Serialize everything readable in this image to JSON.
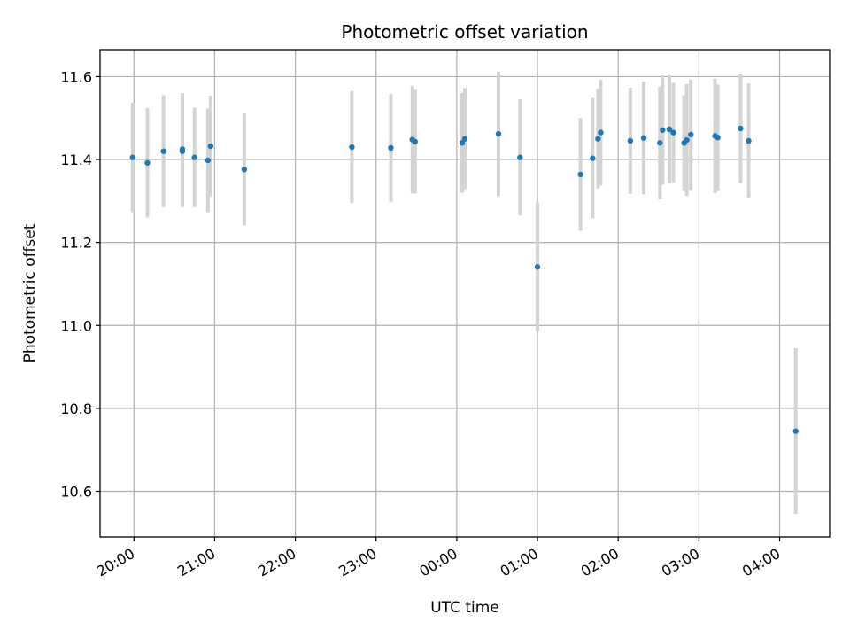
{
  "chart_data": {
    "type": "scatter",
    "title": "Photometric offset variation",
    "xlabel": "UTC time",
    "ylabel": "Photometric offset",
    "x_tick_labels": [
      "20:00",
      "21:00",
      "22:00",
      "23:00",
      "00:00",
      "01:00",
      "02:00",
      "03:00",
      "04:00"
    ],
    "y_tick_labels": [
      "10.6",
      "10.8",
      "11.0",
      "11.2",
      "11.4",
      "11.6"
    ],
    "xlim_hours_after_2000": [
      -0.42,
      8.62
    ],
    "ylim": [
      10.49,
      11.665
    ],
    "grid": true,
    "colors": {
      "point": "#1f77b4",
      "errorbar": "#d3d3d3",
      "grid": "#b0b0b0",
      "axes": "#000000"
    },
    "points": [
      {
        "time": "19:59",
        "y": 11.405,
        "err": 0.132
      },
      {
        "time": "20:10",
        "y": 11.392,
        "err": 0.132
      },
      {
        "time": "20:22",
        "y": 11.42,
        "err": 0.135
      },
      {
        "time": "20:36",
        "y": 11.425,
        "err": 0.135
      },
      {
        "time": "20:36",
        "y": 11.42,
        "err": 0.135
      },
      {
        "time": "20:45",
        "y": 11.405,
        "err": 0.12
      },
      {
        "time": "20:55",
        "y": 11.398,
        "err": 0.125
      },
      {
        "time": "20:57",
        "y": 11.432,
        "err": 0.122
      },
      {
        "time": "21:22",
        "y": 11.376,
        "err": 0.135
      },
      {
        "time": "22:42",
        "y": 11.43,
        "err": 0.135
      },
      {
        "time": "23:11",
        "y": 11.428,
        "err": 0.13
      },
      {
        "time": "23:27",
        "y": 11.448,
        "err": 0.13
      },
      {
        "time": "23:29",
        "y": 11.443,
        "err": 0.125
      },
      {
        "time": "00:04",
        "y": 11.44,
        "err": 0.12
      },
      {
        "time": "00:06",
        "y": 11.45,
        "err": 0.122
      },
      {
        "time": "00:31",
        "y": 11.462,
        "err": 0.15
      },
      {
        "time": "00:47",
        "y": 11.405,
        "err": 0.14
      },
      {
        "time": "01:00",
        "y": 11.141,
        "err": 0.155
      },
      {
        "time": "01:32",
        "y": 11.364,
        "err": 0.136
      },
      {
        "time": "01:41",
        "y": 11.403,
        "err": 0.145
      },
      {
        "time": "01:45",
        "y": 11.45,
        "err": 0.12
      },
      {
        "time": "01:47",
        "y": 11.465,
        "err": 0.128
      },
      {
        "time": "02:09",
        "y": 11.445,
        "err": 0.128
      },
      {
        "time": "02:19",
        "y": 11.452,
        "err": 0.136
      },
      {
        "time": "02:31",
        "y": 11.44,
        "err": 0.136
      },
      {
        "time": "02:33",
        "y": 11.471,
        "err": 0.132
      },
      {
        "time": "02:38",
        "y": 11.473,
        "err": 0.13
      },
      {
        "time": "02:41",
        "y": 11.465,
        "err": 0.12
      },
      {
        "time": "02:49",
        "y": 11.44,
        "err": 0.115
      },
      {
        "time": "02:51",
        "y": 11.447,
        "err": 0.135
      },
      {
        "time": "02:54",
        "y": 11.46,
        "err": 0.133
      },
      {
        "time": "03:12",
        "y": 11.457,
        "err": 0.138
      },
      {
        "time": "03:14",
        "y": 11.453,
        "err": 0.128
      },
      {
        "time": "03:31",
        "y": 11.475,
        "err": 0.132
      },
      {
        "time": "03:37",
        "y": 11.445,
        "err": 0.138
      },
      {
        "time": "04:12",
        "y": 10.745,
        "err": 0.2
      }
    ]
  }
}
